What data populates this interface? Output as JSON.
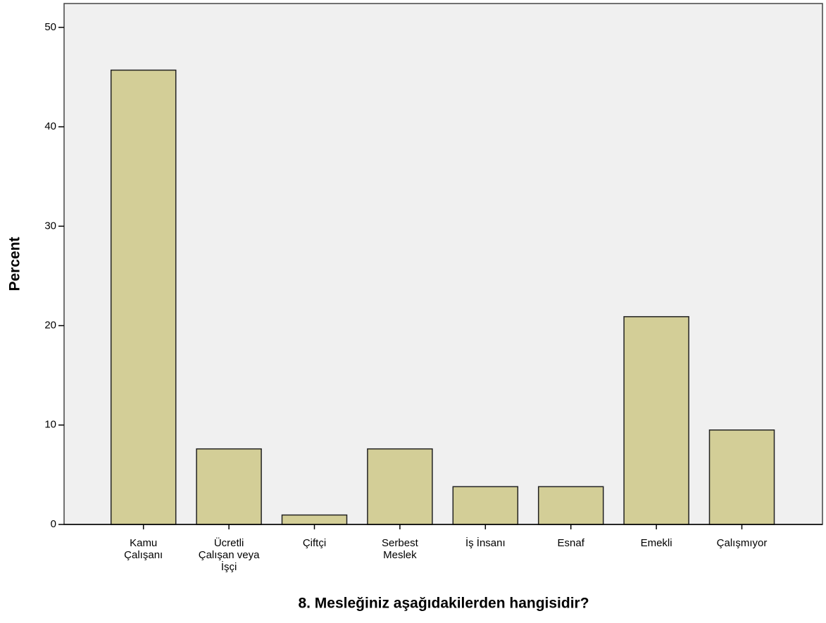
{
  "chart_data": {
    "type": "bar",
    "x_label": "8. Mesleğiniz aşağıdakilerden hangisidir?",
    "y_label": "Percent",
    "categories": [
      "Kamu Çalışanı",
      "Ücretli Çalışan veya İşçi",
      "Çiftçi",
      "Serbest Meslek",
      "İş İnsanı",
      "Esnaf",
      "Emekli",
      "Çalışmıyor"
    ],
    "values": [
      45.7,
      7.6,
      0.95,
      7.6,
      3.8,
      3.8,
      20.9,
      9.5
    ],
    "color": "#d3ce97",
    "ylim": [
      0,
      52.4
    ],
    "yticks": [
      0,
      10,
      20,
      30,
      40,
      50
    ]
  }
}
